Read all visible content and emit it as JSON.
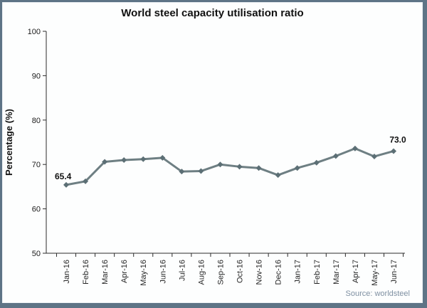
{
  "window": {
    "title": "World steel capacity utilisation ratio"
  },
  "colors": {
    "frame_border": "#5e7486",
    "line": "#6e7f83",
    "marker": "#5c6f75",
    "axis": "#2b2b2b",
    "source_text": "#7f90a2"
  },
  "source": {
    "label": "Source: worldsteel"
  },
  "chart_data": {
    "type": "line",
    "title": "World steel capacity utilisation ratio",
    "xlabel": "",
    "ylabel": "Percentage (%)",
    "ylim": [
      50,
      100
    ],
    "yticks": [
      50,
      60,
      70,
      80,
      90,
      100
    ],
    "grid": false,
    "legend": "none",
    "marker": "diamond",
    "categories": [
      "Jan-16",
      "Feb-16",
      "Mar-16",
      "Apr-16",
      "May-16",
      "Jun-16",
      "Jul-16",
      "Aug-16",
      "Sep-16",
      "Oct-16",
      "Nov-16",
      "Dec-16",
      "Jan-17",
      "Feb-17",
      "Mar-17",
      "Apr-17",
      "May-17",
      "Jun-17"
    ],
    "values": [
      65.4,
      66.2,
      70.6,
      71.0,
      71.2,
      71.5,
      68.4,
      68.5,
      70.0,
      69.5,
      69.2,
      67.6,
      69.2,
      70.4,
      71.9,
      73.6,
      71.8,
      73.0
    ],
    "point_labels": [
      {
        "index": 0,
        "text": "65.4"
      },
      {
        "index": 17,
        "text": "73.0"
      }
    ]
  }
}
